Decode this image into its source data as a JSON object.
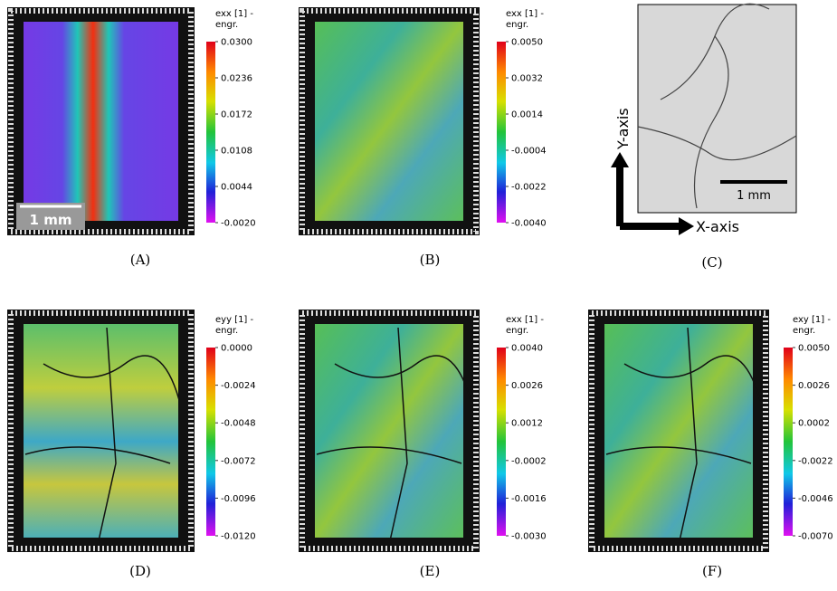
{
  "panels": [
    {
      "caption": "(A)",
      "colorbar": {
        "title": [
          "exx [1] -",
          "engr."
        ],
        "ticks": [
          "0.0300",
          "0.0236",
          "0.0172",
          "0.0108",
          "0.0044",
          "-0.0020"
        ]
      },
      "scale_bar": "1 mm"
    },
    {
      "caption": "(B)",
      "colorbar": {
        "title": [
          "exx [1] -",
          "engr."
        ],
        "ticks": [
          "0.0050",
          "0.0032",
          "0.0014",
          "-0.0004",
          "-0.0022",
          "-0.0040"
        ]
      }
    },
    {
      "caption": "(C)",
      "y_axis": "Y-axis",
      "x_axis": "X-axis",
      "scale_bar": "1 mm"
    },
    {
      "caption": "(D)",
      "colorbar": {
        "title": [
          "eyy [1] -",
          "engr."
        ],
        "ticks": [
          "0.0000",
          "-0.0024",
          "-0.0048",
          "-0.0072",
          "-0.0096",
          "-0.0120"
        ]
      }
    },
    {
      "caption": "(E)",
      "colorbar": {
        "title": [
          "exx [1] -",
          "engr."
        ],
        "ticks": [
          "0.0040",
          "0.0026",
          "0.0012",
          "-0.0002",
          "-0.0016",
          "-0.0030"
        ]
      }
    },
    {
      "caption": "(F)",
      "colorbar": {
        "title": [
          "exy [1] -",
          "engr."
        ],
        "ticks": [
          "0.0050",
          "0.0026",
          "0.0002",
          "-0.0022",
          "-0.0046",
          "-0.0070"
        ]
      }
    }
  ]
}
